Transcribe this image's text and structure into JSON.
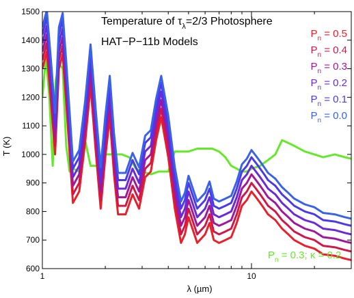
{
  "chart_data": {
    "type": "line",
    "title_line1": "Temperature of τλ=2/3 Photosphere",
    "title_line1_parts": {
      "pre": "Temperature of ",
      "tau": "τ",
      "sub": "λ",
      "post": "=2/3 Photosphere"
    },
    "title_line2": "HAT−P−11b Models",
    "xlabel": "λ (µm)",
    "ylabel": "T (K)",
    "xscale": "log",
    "xlim": [
      1,
      30
    ],
    "ylim": [
      600,
      1500
    ],
    "xticks": [
      1,
      10
    ],
    "xtick_labels": [
      "1",
      "10"
    ],
    "yticks": [
      600,
      700,
      800,
      900,
      1000,
      1100,
      1200,
      1300,
      1400,
      1500
    ],
    "ytick_labels": [
      "600",
      "700",
      "800",
      "900",
      "1000",
      "1100",
      "1200",
      "1300",
      "1400",
      "1500"
    ],
    "grid": false,
    "legend_position": "top-right",
    "x": [
      1.0,
      1.05,
      1.1,
      1.15,
      1.2,
      1.25,
      1.3,
      1.4,
      1.5,
      1.6,
      1.7,
      1.8,
      1.9,
      2.0,
      2.1,
      2.2,
      2.3,
      2.5,
      2.7,
      2.9,
      3.1,
      3.3,
      3.5,
      3.7,
      4.0,
      4.3,
      4.6,
      4.8,
      5.0,
      5.5,
      6.0,
      6.3,
      6.6,
      7.0,
      7.5,
      8.0,
      8.5,
      9.0,
      9.5,
      10.0,
      10.5,
      11.0,
      11.5,
      12.0,
      13.0,
      14.0,
      15.0,
      16.0,
      18.0,
      20.0,
      22.0,
      25.0,
      28.0,
      30.0
    ],
    "base_series": [
      1390,
      1450,
      1270,
      1090,
      1390,
      1440,
      1270,
      920,
      960,
      1130,
      1330,
      1100,
      900,
      1080,
      1220,
      1020,
      880,
      880,
      950,
      900,
      1010,
      1030,
      1140,
      1220,
      1080,
      900,
      780,
      810,
      870,
      780,
      810,
      850,
      790,
      780,
      790,
      800,
      850,
      910,
      930,
      960,
      940,
      920,
      900,
      880,
      860,
      830,
      810,
      790,
      770,
      760,
      740,
      735,
      725,
      720
    ],
    "offsets": [
      -90,
      -60,
      -30,
      0,
      30,
      55
    ],
    "series": [
      {
        "label": "0.5",
        "color": "#e8202a"
      },
      {
        "label": "0.4",
        "color": "#d01848"
      },
      {
        "label": "0.3",
        "color": "#a0189a"
      },
      {
        "label": "0.2",
        "color": "#6a2ad8"
      },
      {
        "label": "0.1",
        "color": "#4a3ae8"
      },
      {
        "label": "0.0",
        "color": "#3a62e8"
      }
    ],
    "legend_prefix": "P",
    "legend_subscript": "n",
    "legend_eq": " = ",
    "green_series": {
      "label_parts": {
        "p": "P",
        "sub": "n",
        "rest": " = 0.3; κ = 0.2"
      },
      "color": "#66e82a",
      "x": [
        1.0,
        1.04,
        1.08,
        1.12,
        1.16,
        1.2,
        1.25,
        1.3,
        1.35,
        1.4,
        1.5,
        1.6,
        1.7,
        1.8,
        1.9,
        2.0,
        2.2,
        2.4,
        2.6,
        2.8,
        3.0,
        3.3,
        3.6,
        4.0,
        4.3,
        4.6,
        5.0,
        5.5,
        6.0,
        6.5,
        7.0,
        7.5,
        8.0,
        8.5,
        9.0,
        9.5,
        10.0,
        11.0,
        12.0,
        13.0,
        14.0,
        15.0,
        16.0,
        18.0,
        20.0,
        22.0,
        25.0,
        28.0,
        30.0
      ],
      "y": [
        1200,
        1340,
        1200,
        960,
        1260,
        1320,
        1300,
        1030,
        940,
        950,
        940,
        1050,
        960,
        960,
        960,
        1000,
        1000,
        1000,
        990,
        950,
        940,
        930,
        940,
        940,
        1010,
        1010,
        1010,
        1020,
        1020,
        1020,
        1010,
        990,
        960,
        950,
        940,
        940,
        950,
        960,
        980,
        1000,
        1050,
        1040,
        1030,
        1010,
        1000,
        990,
        1000,
        990,
        985
      ]
    }
  }
}
